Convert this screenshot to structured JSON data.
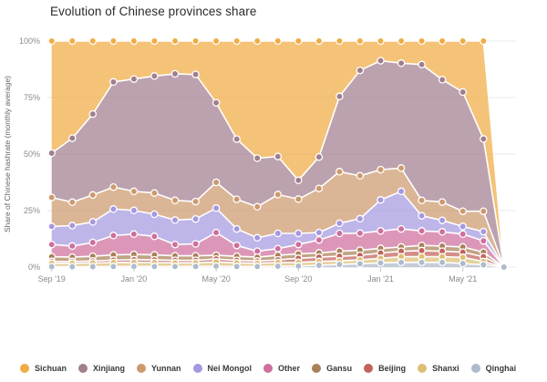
{
  "title": "Evolution of Chinese provinces share",
  "y_axis": {
    "label": "Share of Chinese hashrate (monthly average)",
    "ticks": [
      "0%",
      "25%",
      "50%",
      "75%",
      "100%"
    ],
    "tick_values": [
      0,
      25,
      50,
      75,
      100
    ]
  },
  "x_axis": {
    "tick_labels": [
      "Sep '19",
      "Jan '20",
      "May '20",
      "Sep '20",
      "Jan '21",
      "May '21"
    ],
    "tick_indices": [
      0,
      4,
      8,
      12,
      16,
      20
    ]
  },
  "colors": {
    "background": "#ffffff",
    "grid": "#e8e8e8",
    "axis_text": "#8a8a8a",
    "boundary_line": "#ffffff"
  },
  "chart_data": {
    "type": "area",
    "stacked": true,
    "unit": "%",
    "ylim": [
      0,
      100
    ],
    "grid": true,
    "legend_position": "bottom",
    "x": [
      "Sep '19",
      "Oct '19",
      "Nov '19",
      "Dec '19",
      "Jan '20",
      "Feb '20",
      "Mar '20",
      "Apr '20",
      "May '20",
      "Jun '20",
      "Jul '20",
      "Aug '20",
      "Sep '20",
      "Oct '20",
      "Nov '20",
      "Dec '20",
      "Jan '21",
      "Feb '21",
      "Mar '21",
      "Apr '21",
      "May '21",
      "Jun '21",
      "Jul '21"
    ],
    "series": [
      {
        "name": "Sichuan",
        "color": "#F0AC44",
        "values": [
          49.6,
          43.0,
          32.3,
          18.1,
          16.8,
          15.5,
          14.5,
          14.8,
          27.3,
          43.4,
          51.8,
          51.1,
          61.6,
          51.3,
          24.5,
          13.0,
          8.7,
          9.8,
          10.4,
          17.1,
          22.6,
          43.3,
          0
        ]
      },
      {
        "name": "Xinjiang",
        "color": "#A17E8F",
        "values": [
          19.6,
          28.3,
          35.8,
          46.5,
          49.7,
          51.7,
          56.0,
          56.2,
          35.2,
          26.6,
          21.5,
          16.8,
          8.3,
          13.9,
          33.3,
          46.6,
          48.2,
          46.4,
          60.1,
          54.1,
          52.7,
          32.0,
          0
        ]
      },
      {
        "name": "Yunnan",
        "color": "#CD9A6D",
        "values": [
          12.8,
          10.3,
          11.9,
          9.7,
          8.4,
          9.4,
          8.7,
          7.7,
          11.4,
          13.1,
          13.7,
          17.2,
          15.2,
          19.5,
          22.8,
          19.0,
          13.4,
          10.3,
          6.8,
          8.1,
          6.7,
          9.0,
          0
        ]
      },
      {
        "name": "Nei Mongol",
        "color": "#A598E0",
        "values": [
          8.0,
          9.1,
          9.1,
          11.7,
          10.5,
          9.8,
          10.8,
          11.0,
          10.8,
          7.3,
          6.0,
          6.7,
          4.9,
          3.3,
          4.5,
          6.4,
          13.7,
          16.6,
          6.7,
          5.1,
          3.4,
          4.1,
          0
        ]
      },
      {
        "name": "Other",
        "color": "#CE6F9D",
        "values": [
          5.4,
          4.9,
          6.1,
          8.6,
          9.0,
          8.2,
          5.0,
          5.3,
          10.1,
          4.8,
          2.6,
          3.0,
          4.1,
          5.7,
          7.9,
          7.5,
          7.7,
          8.0,
          6.4,
          6.3,
          5.7,
          5.0,
          0
        ]
      },
      {
        "name": "Gansu",
        "color": "#A98157",
        "values": [
          2.1,
          1.9,
          2.1,
          2.3,
          2.3,
          2.2,
          2.0,
          2.0,
          1.6,
          1.8,
          1.7,
          2.0,
          2.0,
          1.9,
          2.2,
          2.3,
          2.1,
          1.9,
          2.3,
          2.3,
          2.3,
          2.0,
          0
        ]
      },
      {
        "name": "Beijing",
        "color": "#C2625B",
        "values": [
          0.8,
          0.8,
          0.9,
          1.1,
          1.2,
          1.2,
          1.1,
          1.1,
          1.3,
          1.1,
          1.0,
          1.2,
          1.8,
          1.9,
          2.0,
          2.0,
          2.3,
          2.4,
          2.7,
          2.4,
          2.3,
          2.1,
          0
        ]
      },
      {
        "name": "Shanxi",
        "color": "#DDBE74",
        "values": [
          1.5,
          1.5,
          1.6,
          1.7,
          1.8,
          1.7,
          1.6,
          1.6,
          1.9,
          1.6,
          1.4,
          1.6,
          1.6,
          1.7,
          1.6,
          1.7,
          2.0,
          2.5,
          2.5,
          2.5,
          2.7,
          1.5,
          0
        ]
      },
      {
        "name": "Qinghai",
        "color": "#ADBACB",
        "values": [
          0.2,
          0.2,
          0.2,
          0.3,
          0.3,
          0.3,
          0.3,
          0.3,
          0.4,
          0.3,
          0.3,
          0.4,
          0.5,
          0.8,
          1.2,
          1.5,
          1.9,
          2.1,
          2.1,
          2.1,
          1.6,
          1.0,
          0
        ]
      }
    ]
  }
}
